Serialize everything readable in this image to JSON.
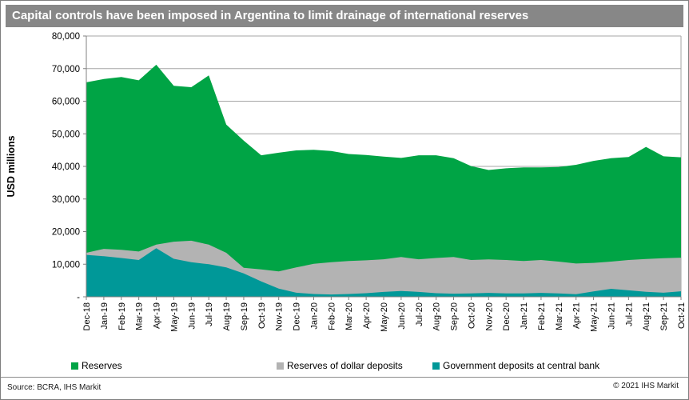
{
  "title": "Capital controls have been imposed in Argentina to limit drainage of international reserves",
  "chart_data": {
    "type": "area",
    "mode": "overlapping-areas-drawn-back-to-front",
    "title": "Capital controls have been imposed in Argentina to limit drainage of international reserves",
    "xlabel": "",
    "ylabel": "USD millions",
    "ylim": [
      0,
      80000
    ],
    "y_tick_step": 10000,
    "y_tick_labels": [
      "-",
      "10,000",
      "20,000",
      "30,000",
      "40,000",
      "50,000",
      "60,000",
      "70,000",
      "80,000"
    ],
    "grid": "horizontal",
    "legend_position": "bottom",
    "x": [
      "Dec-18",
      "Jan-19",
      "Feb-19",
      "Mar-19",
      "Apr-19",
      "May-19",
      "Jun-19",
      "Jul-19",
      "Aug-19",
      "Sep-19",
      "Oct-19",
      "Nov-19",
      "Dec-19",
      "Jan-20",
      "Feb-20",
      "Mar-20",
      "Apr-20",
      "May-20",
      "Jun-20",
      "Jul-20",
      "Aug-20",
      "Sep-20",
      "Oct-20",
      "Nov-20",
      "Dec-20",
      "Jan-21",
      "Feb-21",
      "Mar-21",
      "Apr-21",
      "May-21",
      "Jun-21",
      "Jul-21",
      "Aug-21",
      "Sep-21",
      "Oct-21"
    ],
    "series": [
      {
        "name": "Reserves",
        "color": "#00a445",
        "values": [
          65800,
          66800,
          67400,
          66400,
          71200,
          64700,
          64300,
          67900,
          52800,
          47900,
          43400,
          44200,
          44900,
          45100,
          44700,
          43800,
          43500,
          43000,
          42600,
          43400,
          43400,
          42500,
          40100,
          38900,
          39400,
          39700,
          39700,
          39800,
          40500,
          41700,
          42500,
          42900,
          46000,
          43100,
          42800
        ]
      },
      {
        "name": "Reserves of dollar deposits",
        "color": "#b3b3b3",
        "values": [
          13500,
          14700,
          14400,
          13900,
          16000,
          16900,
          17200,
          16000,
          13500,
          8900,
          8400,
          7800,
          9000,
          10100,
          10600,
          11000,
          11200,
          11500,
          12200,
          11500,
          11900,
          12200,
          11300,
          11450,
          11300,
          11000,
          11300,
          10800,
          10200,
          10400,
          10800,
          11300,
          11600,
          11850,
          12000
        ]
      },
      {
        "name": "Government deposits at central bank",
        "color": "#009898",
        "values": [
          12850,
          12450,
          11900,
          11300,
          14900,
          11650,
          10600,
          10000,
          9000,
          7200,
          4700,
          2500,
          1250,
          850,
          700,
          850,
          1100,
          1500,
          1800,
          1500,
          1100,
          950,
          1050,
          1200,
          1050,
          1050,
          1200,
          1050,
          800,
          1650,
          2450,
          2000,
          1550,
          1250,
          1700
        ]
      }
    ]
  },
  "y_axis": {
    "title": "USD millions"
  },
  "legend": [
    {
      "label": "Reserves",
      "color": "#00a445"
    },
    {
      "label": "Reserves of dollar deposits",
      "color": "#b3b3b3"
    },
    {
      "label": "Government deposits at central bank",
      "color": "#009898"
    }
  ],
  "footer": {
    "source": "Source: BCRA, IHS Markit",
    "copyright": "© 2021 IHS Markit"
  },
  "colors": {
    "title_bar_bg": "#878787",
    "title_text": "#ffffff",
    "gridline": "#a6a6a6",
    "axis_line": "#808080",
    "tick_label": "#000000"
  }
}
